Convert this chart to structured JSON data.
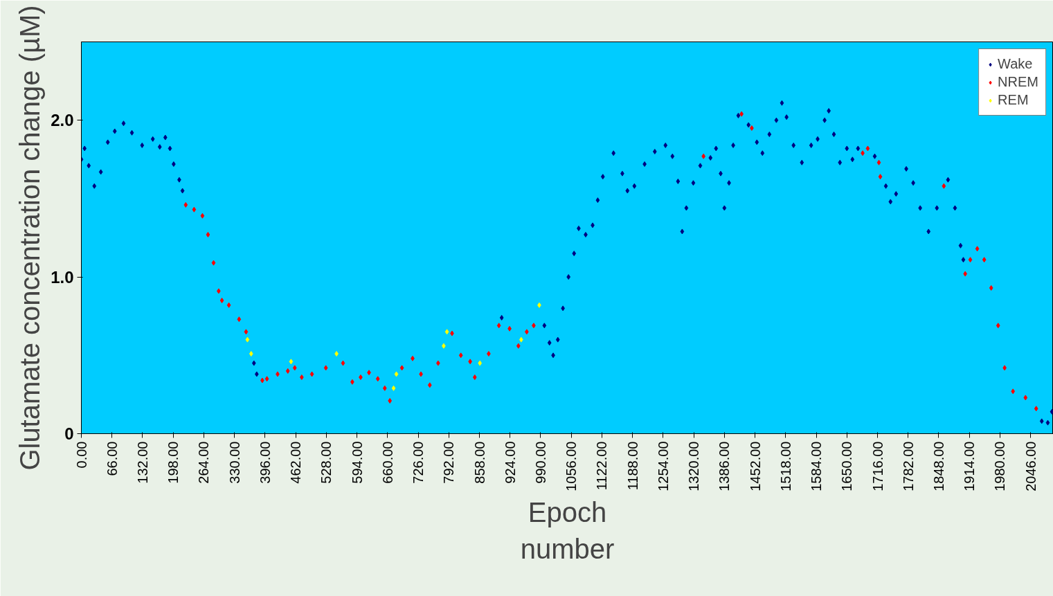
{
  "chart_data": {
    "type": "scatter",
    "xlabel": "Epoch\nnumber",
    "ylabel": "Glutamate concentration change (µM)",
    "marker": "diamond",
    "legend": "top right",
    "grid": false,
    "xlim": [
      0,
      2095
    ],
    "ylim": [
      0,
      2.5
    ],
    "xticks": [
      {
        "value": 0,
        "label": "0.00"
      },
      {
        "value": 66,
        "label": "66.00"
      },
      {
        "value": 132,
        "label": "132.00"
      },
      {
        "value": 198,
        "label": "198.00"
      },
      {
        "value": 264,
        "label": "264.00"
      },
      {
        "value": 330,
        "label": "330.00"
      },
      {
        "value": 396,
        "label": "396.00"
      },
      {
        "value": 462,
        "label": "462.00"
      },
      {
        "value": 528,
        "label": "528.00"
      },
      {
        "value": 594,
        "label": "594.00"
      },
      {
        "value": 660,
        "label": "660.00"
      },
      {
        "value": 726,
        "label": "726.00"
      },
      {
        "value": 792,
        "label": "792.00"
      },
      {
        "value": 858,
        "label": "858.00"
      },
      {
        "value": 924,
        "label": "924.00"
      },
      {
        "value": 990,
        "label": "990.00"
      },
      {
        "value": 1056,
        "label": "1056.00"
      },
      {
        "value": 1122,
        "label": "1122.00"
      },
      {
        "value": 1188,
        "label": "1188.00"
      },
      {
        "value": 1254,
        "label": "1254.00"
      },
      {
        "value": 1320,
        "label": "1320.00"
      },
      {
        "value": 1386,
        "label": "1386.00"
      },
      {
        "value": 1452,
        "label": "1452.00"
      },
      {
        "value": 1518,
        "label": "1518.00"
      },
      {
        "value": 1584,
        "label": "1584.00"
      },
      {
        "value": 1650,
        "label": "1650.00"
      },
      {
        "value": 1716,
        "label": "1716.00"
      },
      {
        "value": 1782,
        "label": "1782.00"
      },
      {
        "value": 1848,
        "label": "1848.00"
      },
      {
        "value": 1914,
        "label": "1914.00"
      },
      {
        "value": 1980,
        "label": "1980.00"
      },
      {
        "value": 2046,
        "label": "2046.00"
      }
    ],
    "yticks": [
      0,
      {
        "value": 1,
        "label": "1.0"
      },
      {
        "value": 2,
        "label": "2.0"
      }
    ],
    "series": [
      {
        "name": "Wake",
        "color": "#000080",
        "x": [
          0,
          7,
          16,
          28,
          42,
          57,
          72,
          91,
          109,
          131,
          154,
          169,
          181,
          191,
          199,
          211,
          218,
          372,
          378,
          906,
          998,
          1009,
          1017,
          1027,
          1038,
          1050,
          1062,
          1072,
          1087,
          1102,
          1113,
          1124,
          1147,
          1166,
          1177,
          1192,
          1214,
          1236,
          1259,
          1274,
          1286,
          1295,
          1304,
          1319,
          1334,
          1356,
          1368,
          1378,
          1386,
          1396,
          1405,
          1416,
          1438,
          1456,
          1468,
          1483,
          1498,
          1510,
          1520,
          1535,
          1553,
          1573,
          1587,
          1602,
          1611,
          1622,
          1635,
          1650,
          1662,
          1674,
          1710,
          1734,
          1744,
          1756,
          1778,
          1793,
          1808,
          1826,
          1844,
          1868,
          1883,
          1895,
          1901,
          2070,
          2083,
          2092
        ],
        "values": [
          1.75,
          1.82,
          1.71,
          1.58,
          1.67,
          1.86,
          1.93,
          1.98,
          1.92,
          1.84,
          1.88,
          1.83,
          1.89,
          1.82,
          1.72,
          1.62,
          1.55,
          0.45,
          0.38,
          0.74,
          0.69,
          0.58,
          0.5,
          0.6,
          0.8,
          1.0,
          1.15,
          1.31,
          1.27,
          1.33,
          1.49,
          1.64,
          1.79,
          1.66,
          1.55,
          1.58,
          1.72,
          1.8,
          1.84,
          1.77,
          1.61,
          1.29,
          1.44,
          1.6,
          1.71,
          1.76,
          1.82,
          1.66,
          1.44,
          1.6,
          1.84,
          2.03,
          1.97,
          1.86,
          1.79,
          1.91,
          2.0,
          2.11,
          2.02,
          1.84,
          1.73,
          1.84,
          1.88,
          2.0,
          2.06,
          1.91,
          1.73,
          1.82,
          1.75,
          1.82,
          1.77,
          1.58,
          1.48,
          1.53,
          1.69,
          1.6,
          1.44,
          1.29,
          1.44,
          1.62,
          1.44,
          1.2,
          1.11,
          0.08,
          0.07,
          0.14
        ]
      },
      {
        "name": "NREM",
        "color": "#ff0000",
        "x": [
          225,
          243,
          261,
          273,
          285,
          296,
          303,
          318,
          340,
          355,
          390,
          400,
          423,
          445,
          460,
          475,
          497,
          527,
          564,
          584,
          602,
          620,
          639,
          654,
          665,
          691,
          714,
          732,
          751,
          769,
          799,
          818,
          838,
          848,
          878,
          900,
          923,
          942,
          960,
          975,
          1341,
          1423,
          1445,
          1684,
          1695,
          1719,
          1722,
          1859,
          1905,
          1916,
          1931,
          1946,
          1961,
          1976,
          1990,
          2008,
          2035,
          2058
        ],
        "values": [
          1.46,
          1.43,
          1.39,
          1.27,
          1.09,
          0.91,
          0.85,
          0.82,
          0.73,
          0.65,
          0.34,
          0.35,
          0.38,
          0.4,
          0.42,
          0.36,
          0.38,
          0.42,
          0.45,
          0.33,
          0.36,
          0.39,
          0.35,
          0.29,
          0.21,
          0.42,
          0.48,
          0.38,
          0.31,
          0.45,
          0.64,
          0.5,
          0.46,
          0.36,
          0.51,
          0.69,
          0.67,
          0.56,
          0.65,
          0.69,
          1.77,
          2.04,
          1.95,
          1.79,
          1.82,
          1.73,
          1.64,
          1.58,
          1.02,
          1.11,
          1.18,
          1.11,
          0.93,
          0.69,
          0.42,
          0.27,
          0.23,
          0.16
        ]
      },
      {
        "name": "REM",
        "color": "#ffff00",
        "x": [
          358,
          366,
          452,
          550,
          673,
          679,
          781,
          788,
          859,
          948,
          987
        ],
        "values": [
          0.6,
          0.51,
          0.46,
          0.51,
          0.29,
          0.38,
          0.56,
          0.65,
          0.45,
          0.6,
          0.82
        ]
      }
    ]
  }
}
